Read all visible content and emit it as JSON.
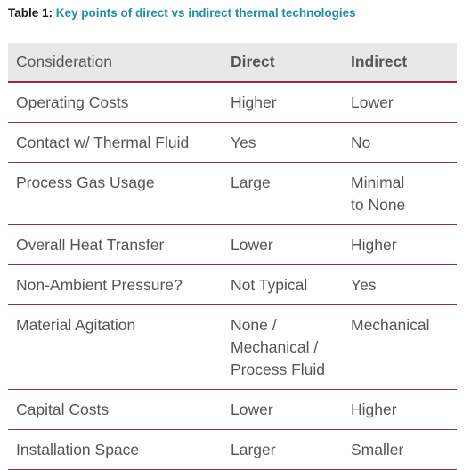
{
  "caption": {
    "label": "Table 1:",
    "text": "Key points of direct vs indirect thermal technologies"
  },
  "table": {
    "headers": [
      "Consideration",
      "Direct",
      "Indirect"
    ],
    "rows": [
      [
        "Operating Costs",
        "Higher",
        "Lower"
      ],
      [
        "Contact w/ Thermal Fluid",
        "Yes",
        "No"
      ],
      [
        "Process Gas Usage",
        "Large",
        "Minimal\nto None"
      ],
      [
        "Overall Heat Transfer",
        "Lower",
        "Higher"
      ],
      [
        "Non-Ambient Pressure?",
        "Not Typical",
        "Yes"
      ],
      [
        "Material Agitation",
        "None /\nMechanical /\nProcess Fluid",
        "Mechanical"
      ],
      [
        "Capital Costs",
        "Lower",
        "Higher"
      ],
      [
        "Installation Space",
        "Larger",
        "Smaller"
      ]
    ]
  },
  "colors": {
    "caption_label": "#1a1a1a",
    "caption_text": "#1d8fa6",
    "header_bg": "#e8e8e8",
    "rule": "#9a2a48",
    "body_text": "#555555"
  }
}
